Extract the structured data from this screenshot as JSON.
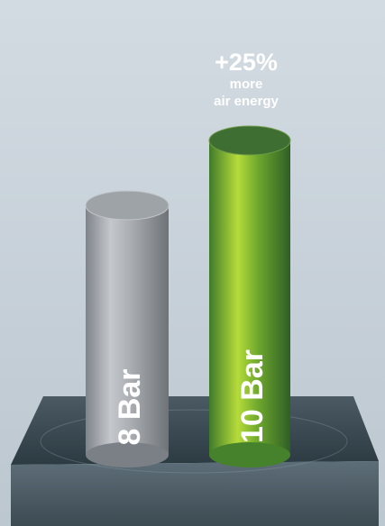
{
  "annotation": {
    "headline": "+25%",
    "line1": "more",
    "line2": "air energy"
  },
  "bars": [
    {
      "label": "8 Bar"
    },
    {
      "label": "10 Bar"
    }
  ]
}
